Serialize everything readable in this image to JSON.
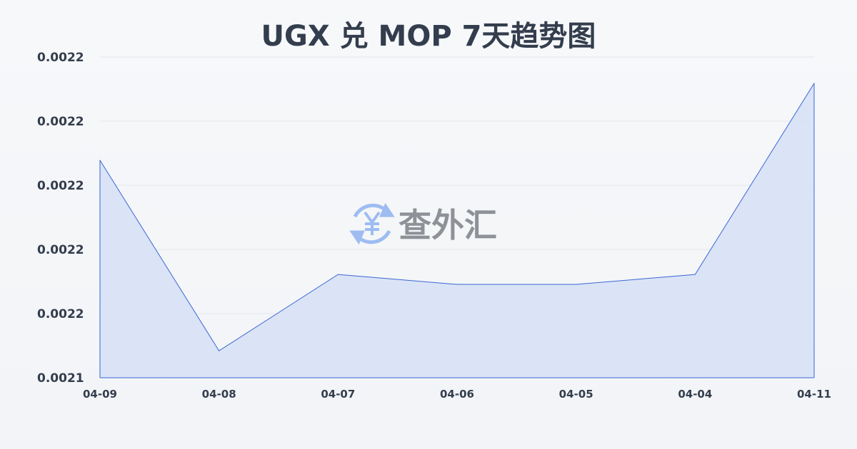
{
  "chart_data": {
    "type": "area",
    "title": "UGX 兑 MOP 7天趋势图",
    "xlabel": "",
    "ylabel": "",
    "categories": [
      "04-09",
      "04-08",
      "04-07",
      "04-06",
      "04-05",
      "04-04",
      "04-11"
    ],
    "series": [
      {
        "values": [
          0.0022078,
          0.0021484,
          0.0021722,
          0.0021691,
          0.0021691,
          0.0021722,
          0.0022318
        ]
      }
    ],
    "ylim": [
      0.00214,
      0.00224
    ],
    "yticks": [
      0.00214,
      0.00216,
      0.00218,
      0.0022,
      0.00222,
      0.00224
    ],
    "ytick_labels": [
      "0.0021",
      "0.0022",
      "0.0022",
      "0.0022",
      "0.0022",
      "0.0022"
    ],
    "grid": true,
    "colors": {
      "line": "#3a67d4",
      "fill": "#d9e2f5",
      "grid": "#e3e6eb",
      "text": "#333d4d"
    }
  },
  "watermark": {
    "text": "查外汇",
    "icon": "yen-exchange-icon",
    "icon_color": "#8fb3f0",
    "text_color": "#7d8087"
  }
}
